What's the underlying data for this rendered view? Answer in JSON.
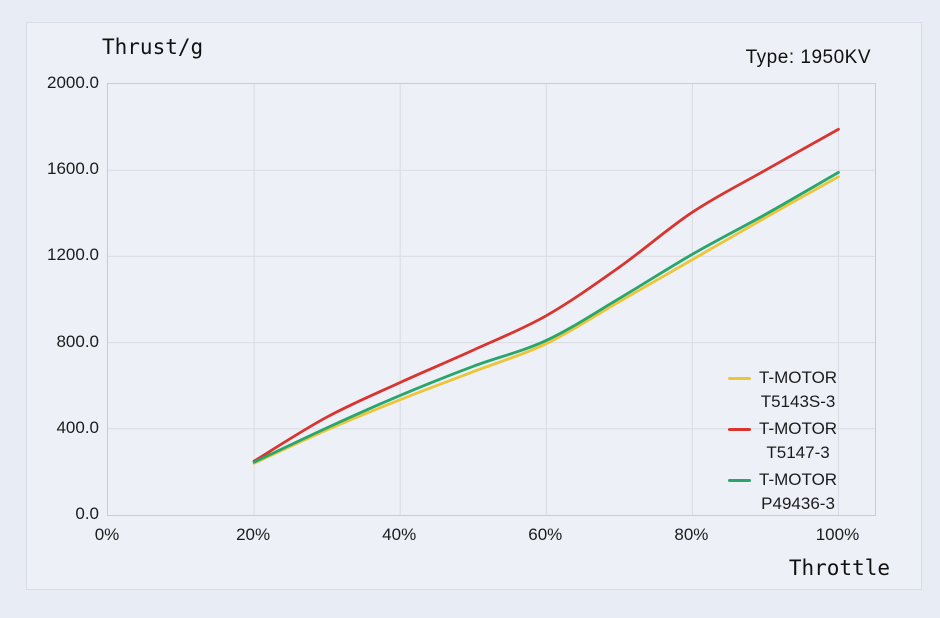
{
  "chart": {
    "y_axis_title": "Thrust/g",
    "type_label": "Type: 1950KV",
    "x_axis_title": "Throttle"
  },
  "colors": {
    "page_bg": "#e8ecf4",
    "panel_bg": "#edf1f7",
    "panel_border": "#d7dce6",
    "plot_border": "#c6ccd6",
    "gridline": "#d9dce3",
    "text": "#1c1c1c",
    "series_yellow": "#ECC53A",
    "series_red": "#D9342E",
    "series_green": "#28A66B"
  },
  "axes": {
    "y": {
      "min": 0,
      "max": 2000,
      "ticks": [
        {
          "v": 2000,
          "label": "2000.0"
        },
        {
          "v": 1600,
          "label": "1600.0"
        },
        {
          "v": 1200,
          "label": "1200.0"
        },
        {
          "v": 800,
          "label": "800.0"
        },
        {
          "v": 400,
          "label": "400.0"
        },
        {
          "v": 0,
          "label": "0.0"
        }
      ]
    },
    "x": {
      "min": 0,
      "max": 105,
      "ticks": [
        {
          "v": 0,
          "label": "0%"
        },
        {
          "v": 20,
          "label": "20%"
        },
        {
          "v": 40,
          "label": "40%"
        },
        {
          "v": 60,
          "label": "60%"
        },
        {
          "v": 80,
          "label": "80%"
        },
        {
          "v": 100,
          "label": "100%"
        }
      ]
    }
  },
  "legend": {
    "items": [
      {
        "line1": "T-MOTOR",
        "line2": "T5143S-3",
        "color": "#ECC53A"
      },
      {
        "line1": "T-MOTOR",
        "line2": "T5147-3",
        "color": "#D9342E"
      },
      {
        "line1": "T-MOTOR",
        "line2": "P49436-3",
        "color": "#28A66B"
      }
    ]
  },
  "chart_data": {
    "type": "line",
    "title": "Type: 1950KV",
    "xlabel": "Throttle",
    "ylabel": "Thrust/g",
    "x": [
      20,
      30,
      40,
      50,
      60,
      70,
      80,
      90,
      100
    ],
    "x_unit": "percent throttle",
    "series": [
      {
        "name": "T-MOTOR T5143S-3",
        "color": "#ECC53A",
        "values": [
          240,
          395,
          535,
          665,
          795,
          990,
          1185,
          1380,
          1570
        ]
      },
      {
        "name": "T-MOTOR T5147-3",
        "color": "#D9342E",
        "values": [
          250,
          455,
          615,
          765,
          925,
          1150,
          1405,
          1600,
          1790
        ]
      },
      {
        "name": "T-MOTOR P49436-3",
        "color": "#28A66B",
        "values": [
          245,
          405,
          555,
          690,
          810,
          1005,
          1210,
          1395,
          1590
        ]
      }
    ],
    "ylim": [
      0,
      2000
    ],
    "xlim": [
      0,
      105
    ],
    "grid": true,
    "legend_position": "right-inside"
  }
}
